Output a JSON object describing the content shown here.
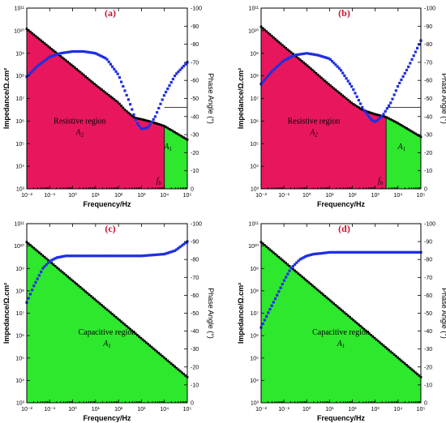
{
  "chart_data": [
    {
      "type": "line",
      "panel_label": "(a)",
      "xlabel": "Frequency/Hz",
      "ylabel": "Impedance/Ω.cm²",
      "y2label": "Phase Angle (°)",
      "x_scale": "log",
      "xlim": [
        0.01,
        100000
      ],
      "y_scale": "log",
      "ylim": [
        1000,
        100000000000
      ],
      "y2lim": [
        0,
        -100
      ],
      "x_ticks": [
        "10⁻²",
        "10⁻¹",
        "10⁰",
        "10¹",
        "10²",
        "10³",
        "10⁴",
        "10⁵"
      ],
      "y_ticks": [
        "10³",
        "10⁴",
        "10⁵",
        "10⁶",
        "10⁷",
        "10⁸",
        "10⁹",
        "10¹⁰",
        "10¹¹"
      ],
      "y2_ticks": [
        "0",
        "-10",
        "-20",
        "-30",
        "-40",
        "-50",
        "-60",
        "-70",
        "-80",
        "-90",
        "-100"
      ],
      "region_label": "Resistive region",
      "region_math": "A",
      "region_sub": "2",
      "area_label": "A",
      "area_sub": "1",
      "fb_label": "f",
      "fb_sub": "b",
      "fb_frequency": 10000,
      "fill_region": "red",
      "fill_secondary": "green",
      "hline_phase": -45,
      "series": [
        {
          "x": [
            0.01,
            0.1,
            1,
            10,
            100,
            200,
            500,
            1000,
            3000,
            10000,
            100000
          ],
          "values": [
            12000000000.0,
            1800000000.0,
            280000000.0,
            40000000.0,
            6500000.0,
            3000000.0,
            1400000.0,
            1200000.0,
            900000.0,
            600000.0,
            150000.0
          ]
        },
        {
          "x": [
            0.01,
            0.03,
            0.1,
            0.3,
            1,
            3,
            10,
            30,
            100,
            300,
            600,
            1000,
            2000,
            4000,
            10000,
            30000,
            100000
          ],
          "values": [
            -62,
            -68,
            -73,
            -75,
            -76,
            -76,
            -75,
            -72,
            -63,
            -48,
            -37,
            -33,
            -34,
            -40,
            -52,
            -63,
            -70
          ]
        }
      ]
    },
    {
      "type": "line",
      "panel_label": "(b)",
      "xlabel": "Frequency/Hz",
      "ylabel": "Impedance/Ω.cm²",
      "y2label": "Phase Angle (°)",
      "x_scale": "log",
      "xlim": [
        0.01,
        100000
      ],
      "y_scale": "log",
      "ylim": [
        1000,
        100000000000
      ],
      "y2lim": [
        0,
        -100
      ],
      "x_ticks": [
        "10⁻²",
        "10⁻¹",
        "10⁰",
        "10¹",
        "10²",
        "10³",
        "10⁴",
        "10⁵"
      ],
      "y_ticks": [
        "10³",
        "10⁴",
        "10⁵",
        "10⁶",
        "10⁷",
        "10⁸",
        "10⁹",
        "10¹⁰",
        "10¹¹"
      ],
      "y2_ticks": [
        "0",
        "-10",
        "-20",
        "-30",
        "-40",
        "-50",
        "-60",
        "-70",
        "-80",
        "-90",
        "-100"
      ],
      "region_label": "Resistive region",
      "region_math": "A",
      "region_sub": "2",
      "area_label": "A",
      "area_sub": "1",
      "fb_label": "f",
      "fb_sub": "b",
      "fb_frequency": 3000,
      "fill_region": "red",
      "fill_secondary": "green",
      "hline_phase": -45,
      "series": [
        {
          "x": [
            0.01,
            0.1,
            1,
            10,
            100,
            300,
            1000,
            3000,
            10000,
            100000
          ],
          "values": [
            15000000000.0,
            2000000000.0,
            300000000.0,
            40000000.0,
            6000000.0,
            3000000.0,
            2000000.0,
            1500000.0,
            800000.0,
            200000.0
          ]
        },
        {
          "x": [
            0.01,
            0.03,
            0.1,
            0.3,
            1,
            3,
            10,
            30,
            100,
            300,
            700,
            1000,
            2000,
            5000,
            10000,
            30000,
            100000
          ],
          "values": [
            -58,
            -65,
            -71,
            -74,
            -75,
            -74,
            -72,
            -66,
            -56,
            -44,
            -38,
            -37,
            -40,
            -48,
            -57,
            -68,
            -82
          ]
        }
      ]
    },
    {
      "type": "line",
      "panel_label": "(c)",
      "xlabel": "Frequency/Hz",
      "ylabel": "Impedance/Ω.cm²",
      "y2label": "Phase Angle (°)",
      "x_scale": "log",
      "xlim": [
        0.01,
        100000
      ],
      "y_scale": "log",
      "ylim": [
        1000,
        100000000000
      ],
      "y2lim": [
        0,
        -100
      ],
      "x_ticks": [
        "10⁻²",
        "10⁻¹",
        "10⁰",
        "10¹",
        "10²",
        "10³",
        "10⁴",
        "10⁵"
      ],
      "y_ticks": [
        "10³",
        "10⁴",
        "10⁵",
        "10⁶",
        "10⁷",
        "10⁸",
        "10⁹",
        "10¹⁰",
        "10¹¹"
      ],
      "y2_ticks": [
        "0",
        "-10",
        "-20",
        "-30",
        "-40",
        "-50",
        "-60",
        "-70",
        "-80",
        "-90",
        "-100"
      ],
      "region_label": "Capacitive region",
      "region_math": "A",
      "region_sub": "1",
      "fill_region": "green",
      "series": [
        {
          "x": [
            0.01,
            100000
          ],
          "values": [
            15000000000.0,
            14000.0
          ]
        },
        {
          "x": [
            0.01,
            0.02,
            0.05,
            0.1,
            0.2,
            0.5,
            1,
            10,
            100,
            1000,
            10000,
            30000,
            100000
          ],
          "values": [
            -56,
            -65,
            -75,
            -79,
            -81,
            -82,
            -82,
            -82,
            -82,
            -82,
            -83,
            -85,
            -90
          ]
        }
      ]
    },
    {
      "type": "line",
      "panel_label": "(d)",
      "xlabel": "Frequency/Hz",
      "ylabel": "Impedance/Ω.cm²",
      "y2label": "Phase Angle (°)",
      "x_scale": "log",
      "xlim": [
        0.01,
        100000
      ],
      "y_scale": "log",
      "ylim": [
        1000,
        100000000000
      ],
      "y2lim": [
        0,
        -100
      ],
      "x_ticks": [
        "10⁻²",
        "10⁻¹",
        "10⁰",
        "10¹",
        "10²",
        "10³",
        "10⁴",
        "10⁵"
      ],
      "y_ticks": [
        "10³",
        "10⁴",
        "10⁵",
        "10⁶",
        "10⁷",
        "10⁸",
        "10⁹",
        "10¹⁰",
        "10¹¹"
      ],
      "y2_ticks": [
        "0",
        "-10",
        "-20",
        "-30",
        "-40",
        "-50",
        "-60",
        "-70",
        "-80",
        "-90",
        "-100"
      ],
      "region_label": "Capacitive region",
      "region_math": "A",
      "region_sub": "1",
      "fill_region": "green",
      "series": [
        {
          "x": [
            0.01,
            100000
          ],
          "values": [
            15000000000.0,
            14000.0
          ]
        },
        {
          "x": [
            0.01,
            0.02,
            0.05,
            0.1,
            0.2,
            0.5,
            1,
            2,
            5,
            10,
            100,
            1000,
            10000,
            100000
          ],
          "values": [
            -42,
            -50,
            -60,
            -68,
            -75,
            -80,
            -82,
            -83,
            -83.5,
            -84,
            -84,
            -84,
            -84,
            -84
          ]
        }
      ]
    }
  ],
  "colors": {
    "red": "#e8175d",
    "green": "#2ee82e",
    "impedance_marker": "#000000",
    "phase_marker": "#1f2fe0",
    "panel_label": "#c8102e"
  }
}
